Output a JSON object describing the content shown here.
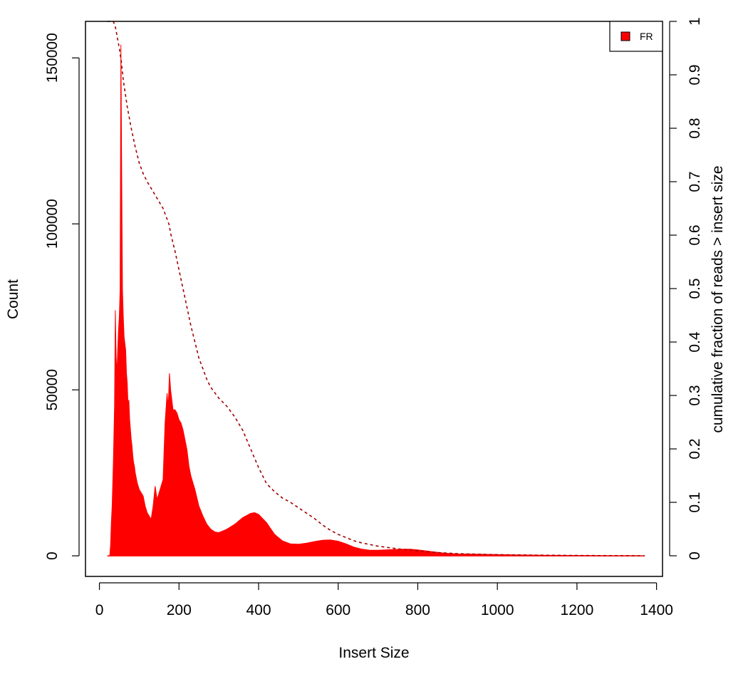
{
  "chart_data": {
    "type": "area",
    "xlabel": "Insert Size",
    "ylabel": "Count",
    "y2label": "cumulative fraction of reads > insert size",
    "xlim": [
      -35,
      1415
    ],
    "ylim": [
      -6200,
      161000
    ],
    "y2lim": [
      -0.0386,
      1.0
    ],
    "x_ticks": [
      0,
      200,
      400,
      600,
      800,
      1000,
      1200,
      1400
    ],
    "y_ticks": [
      0,
      50000,
      100000,
      150000
    ],
    "y2_ticks": [
      0,
      0.1,
      0.2,
      0.3,
      0.4,
      0.5,
      0.6,
      0.7,
      0.8,
      0.9,
      1
    ],
    "legend": {
      "position": "top-right",
      "entries": [
        {
          "label": "FR",
          "color": "#ff0000"
        }
      ]
    },
    "series": [
      {
        "name": "FR",
        "color": "#ff0000",
        "kind": "histogram",
        "points": [
          [
            20,
            0
          ],
          [
            26,
            0
          ],
          [
            28,
            3000
          ],
          [
            30,
            10000
          ],
          [
            32,
            15000
          ],
          [
            35,
            28000
          ],
          [
            38,
            45000
          ],
          [
            40,
            74000
          ],
          [
            42,
            60000
          ],
          [
            44,
            55000
          ],
          [
            46,
            62000
          ],
          [
            48,
            68000
          ],
          [
            50,
            72000
          ],
          [
            52,
            80000
          ],
          [
            54,
            154000
          ],
          [
            56,
            115000
          ],
          [
            58,
            80000
          ],
          [
            60,
            72000
          ],
          [
            62,
            66000
          ],
          [
            64,
            64000
          ],
          [
            66,
            62000
          ],
          [
            68,
            55000
          ],
          [
            70,
            52000
          ],
          [
            72,
            45000
          ],
          [
            74,
            47000
          ],
          [
            76,
            41000
          ],
          [
            78,
            38000
          ],
          [
            80,
            35000
          ],
          [
            82,
            33000
          ],
          [
            84,
            30000
          ],
          [
            86,
            28000
          ],
          [
            88,
            27000
          ],
          [
            90,
            25000
          ],
          [
            95,
            22000
          ],
          [
            100,
            20000
          ],
          [
            105,
            19000
          ],
          [
            110,
            18000
          ],
          [
            115,
            15000
          ],
          [
            120,
            13000
          ],
          [
            125,
            12000
          ],
          [
            130,
            11000
          ],
          [
            135,
            15000
          ],
          [
            140,
            21000
          ],
          [
            145,
            17000
          ],
          [
            150,
            19000
          ],
          [
            155,
            21000
          ],
          [
            160,
            23000
          ],
          [
            165,
            40000
          ],
          [
            170,
            49000
          ],
          [
            173,
            45000
          ],
          [
            176,
            55000
          ],
          [
            179,
            50000
          ],
          [
            182,
            47000
          ],
          [
            185,
            44000
          ],
          [
            190,
            44000
          ],
          [
            195,
            43000
          ],
          [
            200,
            41000
          ],
          [
            205,
            40000
          ],
          [
            210,
            38000
          ],
          [
            215,
            35000
          ],
          [
            220,
            32000
          ],
          [
            225,
            27000
          ],
          [
            230,
            24000
          ],
          [
            240,
            20000
          ],
          [
            250,
            15000
          ],
          [
            260,
            12000
          ],
          [
            270,
            9500
          ],
          [
            280,
            8000
          ],
          [
            290,
            7200
          ],
          [
            300,
            7000
          ],
          [
            310,
            7500
          ],
          [
            320,
            8000
          ],
          [
            340,
            9500
          ],
          [
            360,
            11500
          ],
          [
            380,
            12800
          ],
          [
            390,
            13000
          ],
          [
            400,
            12500
          ],
          [
            420,
            10000
          ],
          [
            440,
            6500
          ],
          [
            460,
            4500
          ],
          [
            480,
            3600
          ],
          [
            500,
            3500
          ],
          [
            520,
            3800
          ],
          [
            540,
            4300
          ],
          [
            560,
            4700
          ],
          [
            580,
            4800
          ],
          [
            600,
            4400
          ],
          [
            620,
            3600
          ],
          [
            640,
            2600
          ],
          [
            660,
            2000
          ],
          [
            680,
            1700
          ],
          [
            700,
            1700
          ],
          [
            720,
            1800
          ],
          [
            740,
            1900
          ],
          [
            760,
            2000
          ],
          [
            780,
            2000
          ],
          [
            800,
            1800
          ],
          [
            820,
            1500
          ],
          [
            840,
            1200
          ],
          [
            860,
            900
          ],
          [
            880,
            700
          ],
          [
            900,
            600
          ],
          [
            950,
            500
          ],
          [
            1000,
            400
          ],
          [
            1050,
            300
          ],
          [
            1100,
            200
          ],
          [
            1150,
            150
          ],
          [
            1200,
            100
          ],
          [
            1250,
            80
          ],
          [
            1300,
            60
          ],
          [
            1350,
            40
          ],
          [
            1370,
            0
          ]
        ]
      },
      {
        "name": "cumulative fraction of reads > insert size",
        "color": "#a00000",
        "kind": "cumulative",
        "axis": "right",
        "points": [
          [
            20,
            1.0
          ],
          [
            28,
            1.0
          ],
          [
            35,
            1.0
          ],
          [
            40,
            0.99
          ],
          [
            45,
            0.97
          ],
          [
            50,
            0.95
          ],
          [
            55,
            0.925
          ],
          [
            60,
            0.89
          ],
          [
            65,
            0.865
          ],
          [
            70,
            0.84
          ],
          [
            80,
            0.8
          ],
          [
            90,
            0.765
          ],
          [
            100,
            0.735
          ],
          [
            110,
            0.715
          ],
          [
            120,
            0.7
          ],
          [
            140,
            0.675
          ],
          [
            160,
            0.65
          ],
          [
            170,
            0.63
          ],
          [
            175,
            0.62
          ],
          [
            180,
            0.6
          ],
          [
            190,
            0.57
          ],
          [
            200,
            0.535
          ],
          [
            210,
            0.5
          ],
          [
            220,
            0.465
          ],
          [
            230,
            0.43
          ],
          [
            240,
            0.4
          ],
          [
            250,
            0.37
          ],
          [
            260,
            0.35
          ],
          [
            270,
            0.33
          ],
          [
            280,
            0.315
          ],
          [
            300,
            0.295
          ],
          [
            320,
            0.28
          ],
          [
            340,
            0.26
          ],
          [
            360,
            0.235
          ],
          [
            380,
            0.2
          ],
          [
            400,
            0.165
          ],
          [
            420,
            0.135
          ],
          [
            440,
            0.12
          ],
          [
            460,
            0.108
          ],
          [
            480,
            0.1
          ],
          [
            500,
            0.09
          ],
          [
            520,
            0.08
          ],
          [
            540,
            0.07
          ],
          [
            560,
            0.058
          ],
          [
            580,
            0.048
          ],
          [
            600,
            0.04
          ],
          [
            620,
            0.034
          ],
          [
            640,
            0.028
          ],
          [
            660,
            0.024
          ],
          [
            700,
            0.018
          ],
          [
            750,
            0.013
          ],
          [
            800,
            0.009
          ],
          [
            850,
            0.006
          ],
          [
            900,
            0.004
          ],
          [
            950,
            0.003
          ],
          [
            1000,
            0.002
          ],
          [
            1100,
            0.0012
          ],
          [
            1200,
            0.0006
          ],
          [
            1300,
            0.0002
          ],
          [
            1370,
            0.0
          ]
        ]
      }
    ]
  }
}
